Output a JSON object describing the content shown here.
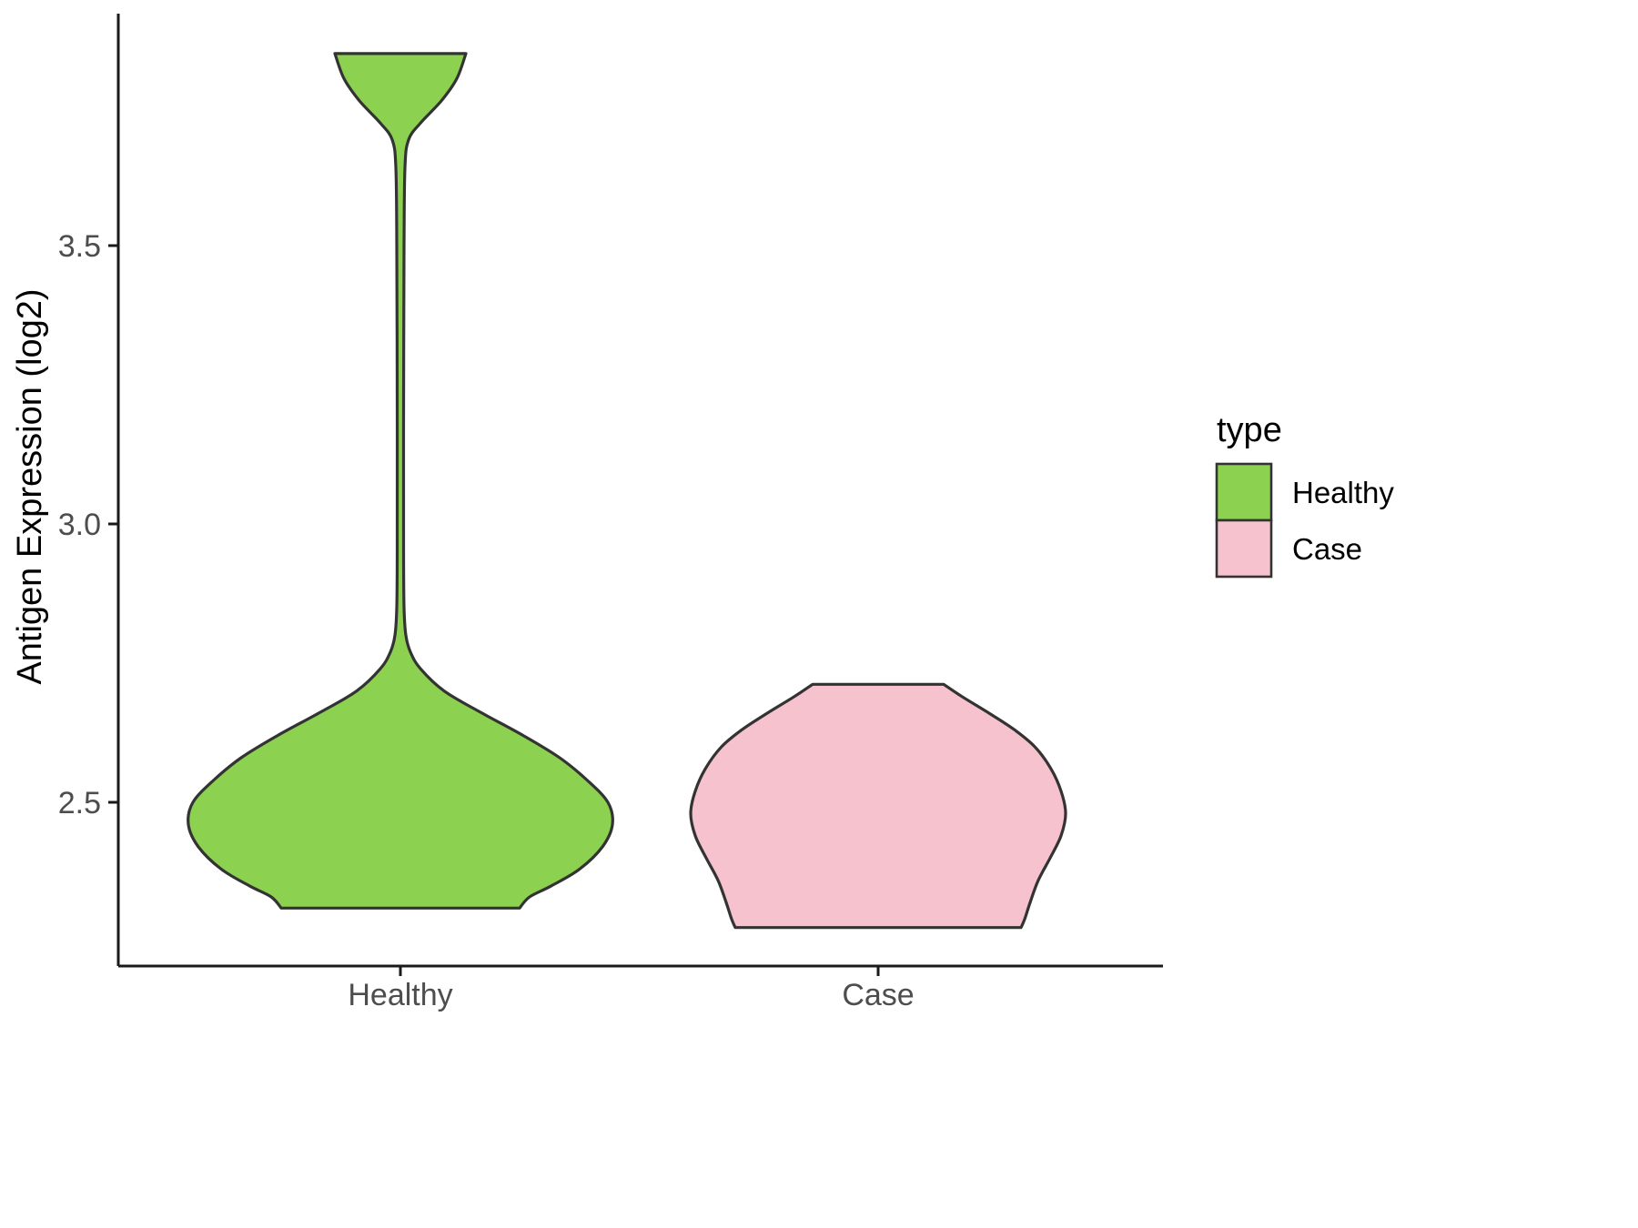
{
  "figure": {
    "background": "#ffffff",
    "kind": "ggplot-style violin plot"
  },
  "chart_data": {
    "type": "violin",
    "title": "",
    "xlabel": "",
    "ylabel": "Antigen Expression (log2)",
    "categories": [
      "Healthy",
      "Case"
    ],
    "y_axis": {
      "ticks": [
        {
          "value": 3.5,
          "label": "3.5"
        },
        {
          "value": 3.0,
          "label": "3.0"
        },
        {
          "value": 2.5,
          "label": "2.5"
        }
      ],
      "range_shown": [
        2.2,
        3.9
      ],
      "grid": false
    },
    "legend": {
      "title": "type",
      "position": "right",
      "entries": [
        {
          "label": "Healthy",
          "color": "#8CD14F"
        },
        {
          "label": "Case",
          "color": "#F6C2CE"
        }
      ]
    },
    "style": {
      "outline_color": "#333333",
      "outline_width": 3.2,
      "axis_color": "#1a1a1a",
      "axis_width": 3,
      "tick_label_color": "#4d4d4d",
      "title_color": "#000000",
      "tick_label_size": 34,
      "axis_title_size": 38,
      "legend_title_size": 38,
      "legend_label_size": 33
    },
    "series": [
      {
        "name": "Healthy",
        "color": "#8CD14F",
        "summary": {
          "main_bulk_range_log2": [
            2.31,
            2.78
          ],
          "peak_density_at": 2.47,
          "flat_bottom_at": 2.31,
          "thin_stem_range": [
            2.8,
            3.64
          ],
          "upper_cluster_range": [
            3.68,
            3.845
          ],
          "flat_top_at": 3.845
        },
        "profile_value_halfwidth": [
          [
            3.845,
            72
          ],
          [
            3.8,
            62
          ],
          [
            3.76,
            45
          ],
          [
            3.72,
            22
          ],
          [
            3.69,
            9
          ],
          [
            3.64,
            5
          ],
          [
            3.5,
            4
          ],
          [
            3.2,
            3.5
          ],
          [
            2.95,
            3.5
          ],
          [
            2.85,
            4
          ],
          [
            2.8,
            6
          ],
          [
            2.77,
            11
          ],
          [
            2.74,
            22
          ],
          [
            2.7,
            48
          ],
          [
            2.66,
            90
          ],
          [
            2.62,
            135
          ],
          [
            2.58,
            175
          ],
          [
            2.54,
            205
          ],
          [
            2.5,
            228
          ],
          [
            2.46,
            233
          ],
          [
            2.42,
            222
          ],
          [
            2.38,
            197
          ],
          [
            2.35,
            166
          ],
          [
            2.33,
            142
          ],
          [
            2.31,
            131
          ]
        ]
      },
      {
        "name": "Case",
        "color": "#F6C2CE",
        "summary": {
          "main_bulk_range_log2": [
            2.275,
            2.712
          ],
          "peak_density_at": 2.48,
          "flat_bottom_at": 2.275,
          "flat_top_at": 2.712
        },
        "profile_value_halfwidth": [
          [
            2.712,
            72
          ],
          [
            2.69,
            92
          ],
          [
            2.66,
            122
          ],
          [
            2.63,
            150
          ],
          [
            2.6,
            172
          ],
          [
            2.56,
            190
          ],
          [
            2.52,
            201
          ],
          [
            2.48,
            206
          ],
          [
            2.44,
            201
          ],
          [
            2.4,
            189
          ],
          [
            2.36,
            176
          ],
          [
            2.32,
            167
          ],
          [
            2.29,
            161
          ],
          [
            2.275,
            157
          ]
        ]
      }
    ]
  }
}
